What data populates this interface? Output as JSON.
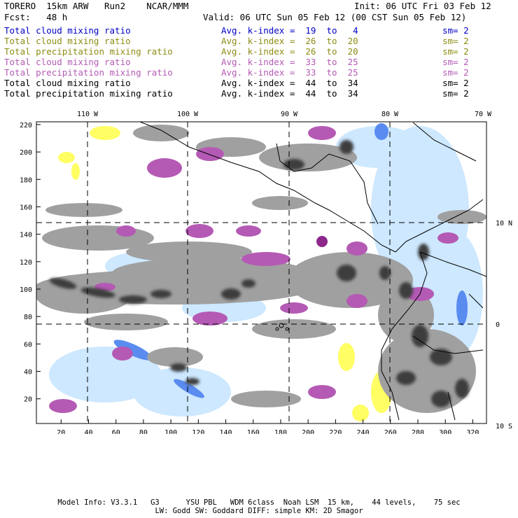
{
  "header": {
    "model": "TORERO  15km ARW   Run2    NCAR/MMM",
    "init": "Init: 06 UTC Fri 03 Feb 12",
    "fcst": "Fcst:   48 h",
    "valid": "Valid: 06 UTC Sun 05 Feb 12 (00 CST Sun 05 Feb 12)"
  },
  "legend": [
    {
      "name": "Total cloud mixing ratio",
      "kindex": "Avg. k-index =  19  to   4",
      "sm": "sm= 2",
      "color": "#0000c8"
    },
    {
      "name": "Total cloud mixing ratio",
      "kindex": "Avg. k-index =  26  to  20",
      "sm": "sm= 2",
      "color": "#8c8c14"
    },
    {
      "name": "Total precipitation mixing ratio",
      "kindex": "Avg. k-index =  26  to  20",
      "sm": "sm= 2",
      "color": "#8c8c14"
    },
    {
      "name": "Total cloud mixing ratio",
      "kindex": "Avg. k-index =  33  to  25",
      "sm": "sm= 2",
      "color": "#b45ab4"
    },
    {
      "name": "Total precipitation mixing ratio",
      "kindex": "Avg. k-index =  33  to  25",
      "sm": "sm= 2",
      "color": "#b45ab4"
    },
    {
      "name": "Total cloud mixing ratio",
      "kindex": "Avg. k-index =  44  to  34",
      "sm": "sm= 2",
      "color": "#000000"
    },
    {
      "name": "Total precipitation mixing ratio",
      "kindex": "Avg. k-index =  44  to  34",
      "sm": "sm= 2",
      "color": "#000000"
    }
  ],
  "map": {
    "lon_labels": [
      "110 W",
      "100 W",
      "90 W",
      "80 W",
      "70 W"
    ],
    "lat_labels": [
      "10 N",
      "0",
      "10 S"
    ],
    "x_ticks": [
      "20",
      "40",
      "60",
      "80",
      "100",
      "120",
      "140",
      "160",
      "180",
      "200",
      "220",
      "240",
      "260",
      "280",
      "300",
      "320"
    ],
    "y_ticks": [
      "20",
      "40",
      "60",
      "80",
      "100",
      "120",
      "140",
      "160",
      "180",
      "200",
      "220"
    ],
    "colors": {
      "gray": "#a0a0a0",
      "darkgray": "#3c3c3c",
      "purple": "#b45ab4",
      "yellow": "#ffff64",
      "lightblue": "#c8e6ff",
      "blue": "#1e50dc"
    }
  },
  "footer": {
    "line1": "Model Info: V3.3.1   G3      YSU PBL   WDM 6class  Noah LSM  15 km,    44 levels,    75 sec",
    "line2": "LW: Godd SW: Goddard DIFF: simple KM: 2D Smagor"
  }
}
